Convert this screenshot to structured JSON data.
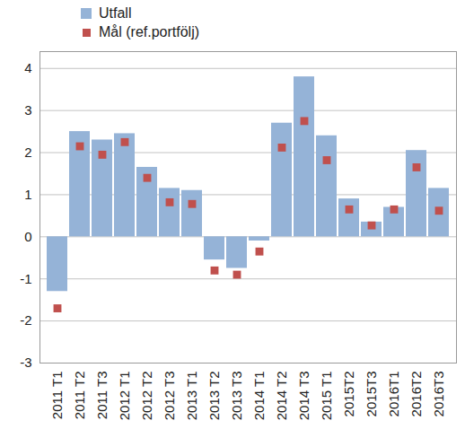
{
  "chart_data": {
    "type": "bar",
    "categories": [
      "2011 T1",
      "2011 T2",
      "2011 T3",
      "2012 T1",
      "2012 T2",
      "2012 T3",
      "2013 T1",
      "2013 T2",
      "2013 T3",
      "2014 T1",
      "2014 T2",
      "2014 T3",
      "2015 T1",
      "2015T2",
      "2015T3",
      "2016T1",
      "2016T2",
      "2016T3"
    ],
    "series": [
      {
        "name": "Utfall",
        "type": "bar",
        "color": "#95b3d7",
        "values": [
          -1.3,
          2.5,
          2.3,
          2.45,
          1.65,
          1.15,
          1.1,
          -0.55,
          -0.75,
          -0.1,
          2.7,
          3.8,
          2.4,
          0.9,
          0.35,
          0.7,
          2.05,
          1.15
        ]
      },
      {
        "name": "Mål (ref.portfölj)",
        "type": "scatter",
        "marker": "square",
        "color": "#c0504d",
        "values": [
          -1.7,
          2.15,
          1.95,
          2.25,
          1.4,
          0.82,
          0.78,
          -0.8,
          -0.9,
          -0.35,
          2.12,
          2.75,
          1.82,
          0.65,
          0.27,
          0.65,
          1.65,
          0.62
        ]
      }
    ],
    "ylim": [
      -3,
      4.4
    ],
    "yticks": [
      -3,
      -2,
      -1,
      0,
      1,
      2,
      3,
      4
    ],
    "grid": true,
    "legend": "top-left"
  }
}
